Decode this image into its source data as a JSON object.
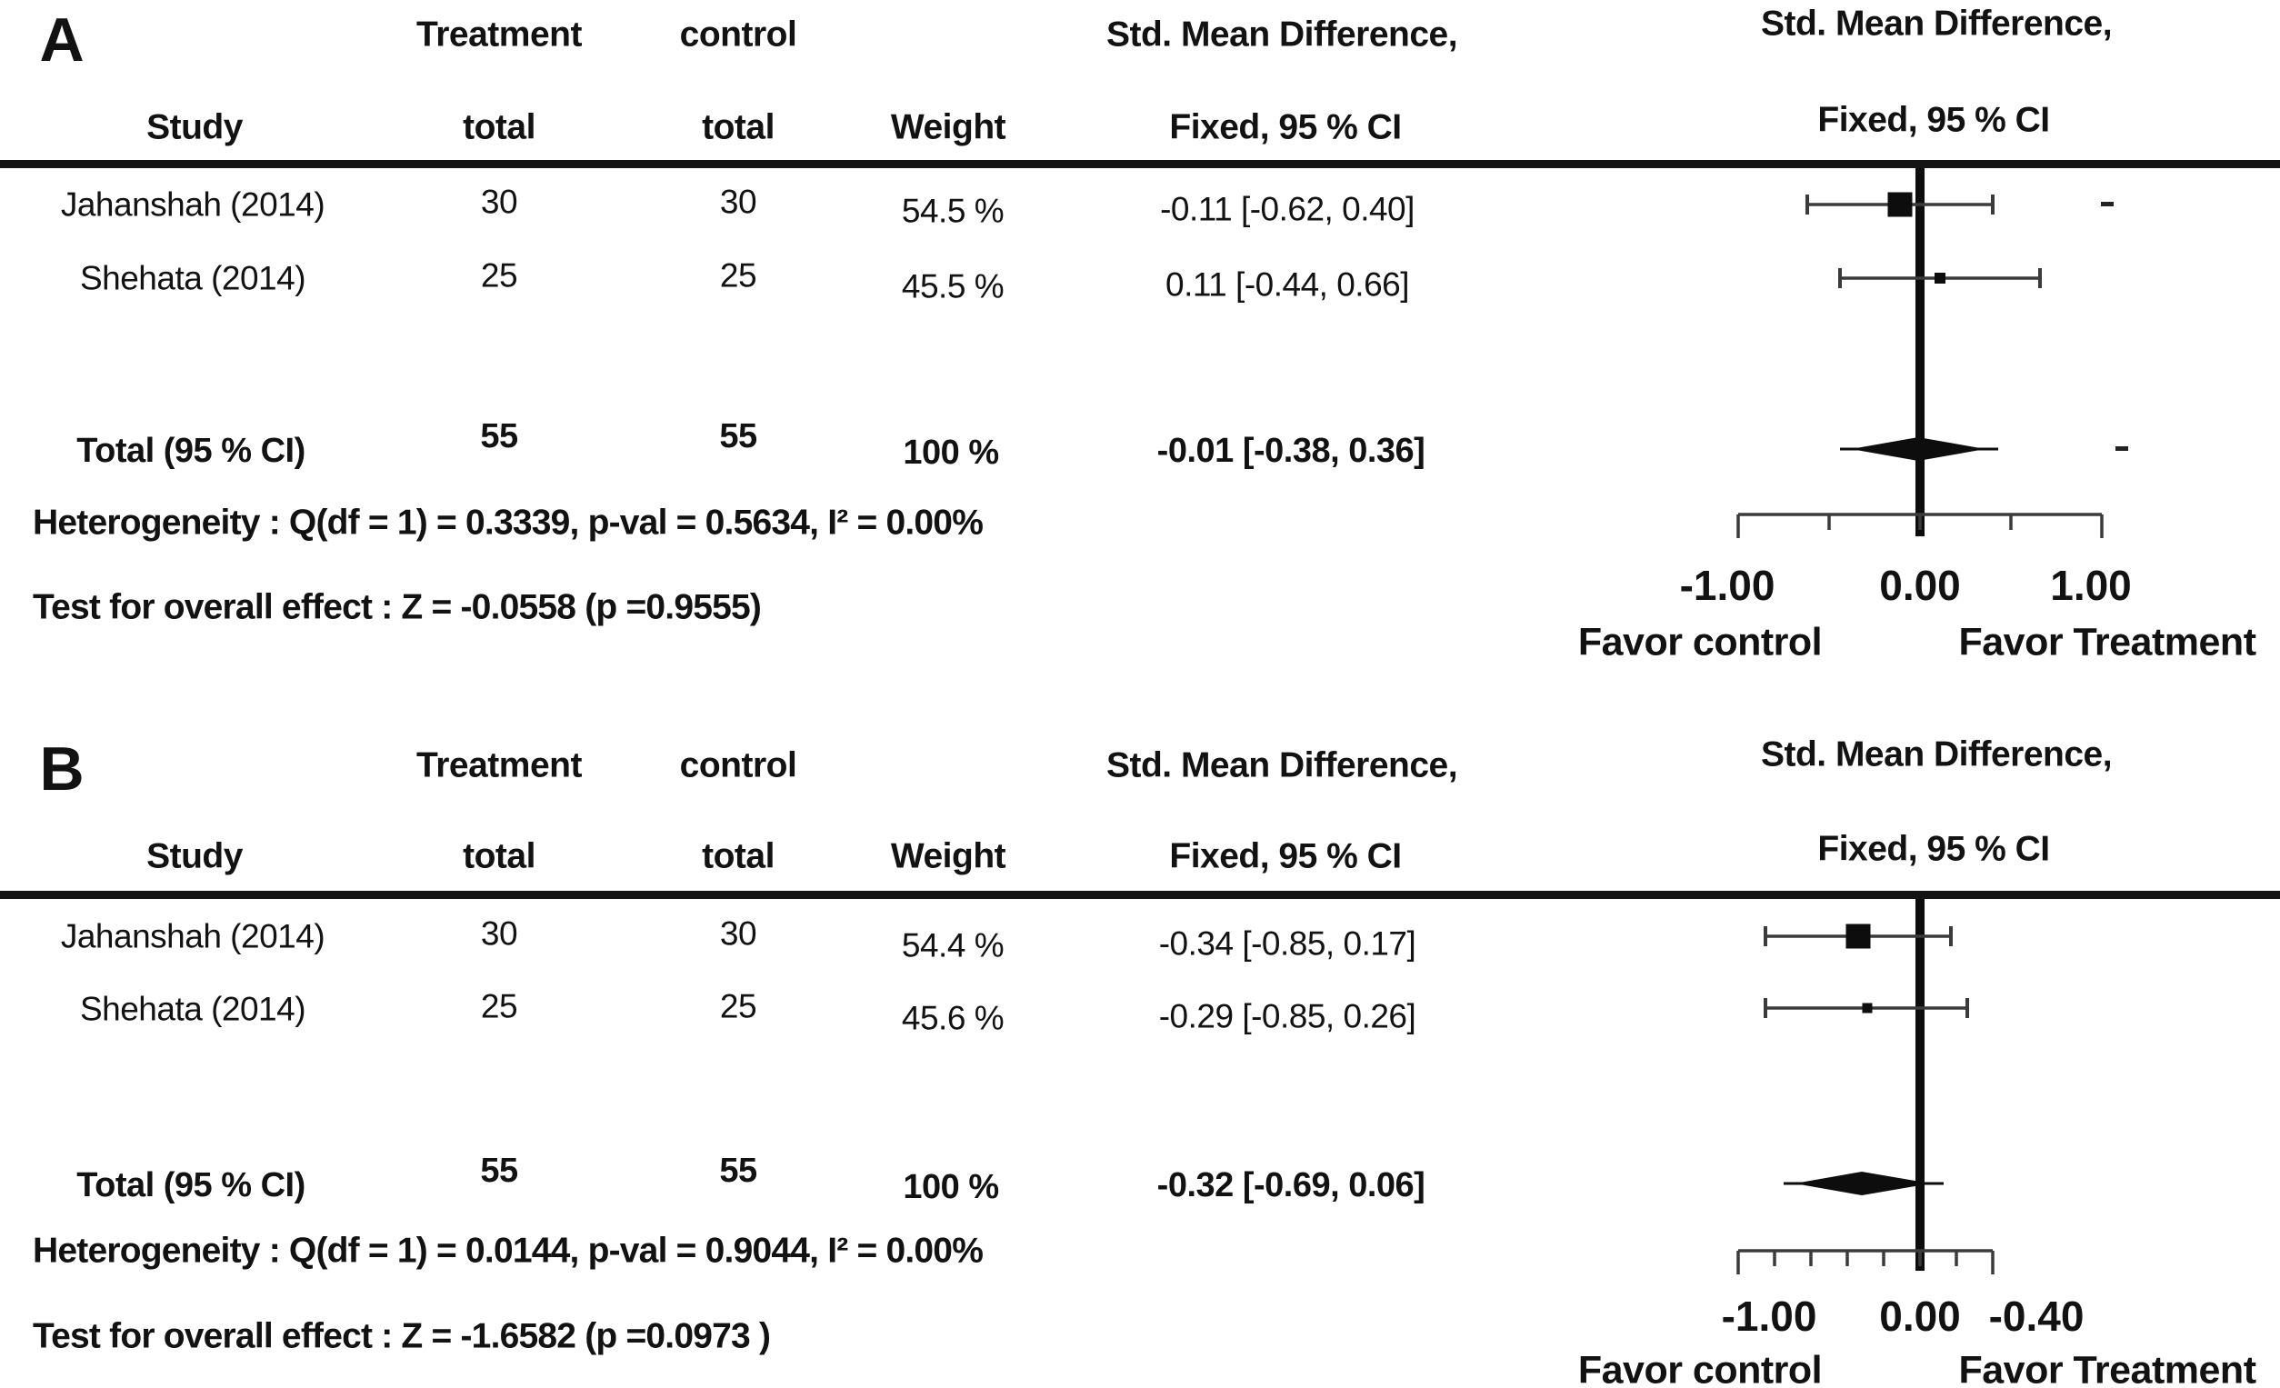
{
  "figure": {
    "background": "#ffffff",
    "text_color": "#121212",
    "line_color": "#3b3b3b",
    "marker_color": "#0d0d0d"
  },
  "panels": [
    {
      "panel_label": "A",
      "header": {
        "treatment": "Treatment",
        "control": "control",
        "smd_left": "Std. Mean Difference,",
        "smd_right": "Std. Mean Difference,",
        "study": "Study",
        "total_t": "total",
        "total_c": "total",
        "weight": "Weight",
        "fixed_left": "Fixed, 95 % CI",
        "fixed_right": "Fixed, 95 % CI"
      },
      "rows": [
        {
          "study": "Jahanshah (2014)",
          "treatment_total": "30",
          "control_total": "30",
          "weight": "54.5 %",
          "ci": "-0.11 [-0.62, 0.40]"
        },
        {
          "study": "Shehata (2014)",
          "treatment_total": "25",
          "control_total": "25",
          "weight": "45.5 %",
          "ci": "0.11 [-0.44, 0.66]"
        }
      ],
      "total_row": {
        "label": "Total (95 % CI)",
        "treatment_total": "55",
        "control_total": "55",
        "weight": "100 %",
        "ci": "-0.01 [-0.38, 0.36]"
      },
      "heterogeneity": "Heterogeneity : Q(df = 1) = 0.3339, p-val = 0.5634, I² = 0.00%",
      "overall_effect": "Test for overall effect : Z = -0.0558 (p =0.9555)",
      "axis_labels": [
        {
          "text": "-1.00"
        },
        {
          "text": "0.00"
        },
        {
          "text": "1.00"
        }
      ],
      "favor_left": "Favor control",
      "favor_right": "Favor Treatment"
    },
    {
      "panel_label": "B",
      "header": {
        "treatment": "Treatment",
        "control": "control",
        "smd_left": "Std. Mean Difference,",
        "smd_right": "Std. Mean Difference,",
        "study": "Study",
        "total_t": "total",
        "total_c": "total",
        "weight": "Weight",
        "fixed_left": "Fixed, 95 % CI",
        "fixed_right": "Fixed, 95 % CI"
      },
      "rows": [
        {
          "study": "Jahanshah (2014)",
          "treatment_total": "30",
          "control_total": "30",
          "weight": "54.4 %",
          "ci": "-0.34 [-0.85, 0.17]"
        },
        {
          "study": "Shehata (2014)",
          "treatment_total": "25",
          "control_total": "25",
          "weight": "45.6 %",
          "ci": "-0.29 [-0.85, 0.26]"
        }
      ],
      "total_row": {
        "label": "Total (95 % CI)",
        "treatment_total": "55",
        "control_total": "55",
        "weight": "100 %",
        "ci": "-0.32 [-0.69, 0.06]"
      },
      "heterogeneity": "Heterogeneity : Q(df = 1) = 0.0144, p-val = 0.9044, I² = 0.00%",
      "overall_effect": "Test for overall effect : Z = -1.6582  (p =0.0973 )",
      "axis_labels": [
        {
          "text": "-1.00"
        },
        {
          "text": "0.00"
        },
        {
          "text": "-0.40"
        }
      ],
      "favor_left": "Favor control",
      "favor_right": "Favor Treatment"
    }
  ],
  "chart_data": {
    "type": "forest",
    "effect_measure": "Std. Mean Difference",
    "model": "Fixed, 95 % CI",
    "panels": [
      {
        "label": "A",
        "studies": [
          {
            "name": "Jahanshah (2014)",
            "treatment_total": 30,
            "control_total": 30,
            "weight_pct": 54.5,
            "est": -0.11,
            "ci": [
              -0.62,
              0.4
            ],
            "marker_px": 27
          },
          {
            "name": "Shehata (2014)",
            "treatment_total": 25,
            "control_total": 25,
            "weight_pct": 45.5,
            "est": 0.11,
            "ci": [
              -0.44,
              0.66
            ],
            "marker_px": 12
          }
        ],
        "total": {
          "treatment_total": 55,
          "control_total": 55,
          "weight_pct": 100,
          "est": -0.01,
          "ci": [
            -0.38,
            0.36
          ]
        },
        "heterogeneity": {
          "Q": 0.3339,
          "df": 1,
          "p_val": 0.5634,
          "I2_pct": 0.0
        },
        "overall_effect": {
          "Z": -0.0558,
          "p": 0.9555
        },
        "axis": {
          "range": [
            -1.0,
            1.0
          ],
          "ticks": [
            -1.0,
            -0.5,
            0.0,
            0.5,
            1.0
          ],
          "zero_line": 0.0
        },
        "favor_left": "Favor control",
        "favor_right": "Favor Treatment",
        "stray_marks": [
          {
            "v": 1.03,
            "at": 0
          },
          {
            "v": 1.11,
            "at": "total"
          }
        ]
      },
      {
        "label": "B",
        "studies": [
          {
            "name": "Jahanshah (2014)",
            "treatment_total": 30,
            "control_total": 30,
            "weight_pct": 54.4,
            "est": -0.34,
            "ci": [
              -0.85,
              0.17
            ],
            "marker_px": 27
          },
          {
            "name": "Shehata (2014)",
            "treatment_total": 25,
            "control_total": 25,
            "weight_pct": 45.6,
            "est": -0.29,
            "ci": [
              -0.85,
              0.26
            ],
            "marker_px": 11
          }
        ],
        "total": {
          "treatment_total": 55,
          "control_total": 55,
          "weight_pct": 100,
          "est": -0.32,
          "ci": [
            -0.69,
            0.06
          ]
        },
        "heterogeneity": {
          "Q": 0.0144,
          "df": 1,
          "p_val": 0.9044,
          "I2_pct": 0.0
        },
        "overall_effect": {
          "Z": -1.6582,
          "p": 0.0973
        },
        "axis": {
          "range": [
            -1.0,
            0.4
          ],
          "ticks": [
            -1.0,
            -0.8,
            -0.6,
            -0.4,
            -0.2,
            0.0,
            0.2,
            0.4
          ],
          "zero_line": 0.0
        },
        "favor_left": "Favor control",
        "favor_right": "Favor Treatment",
        "stray_marks": []
      }
    ]
  }
}
